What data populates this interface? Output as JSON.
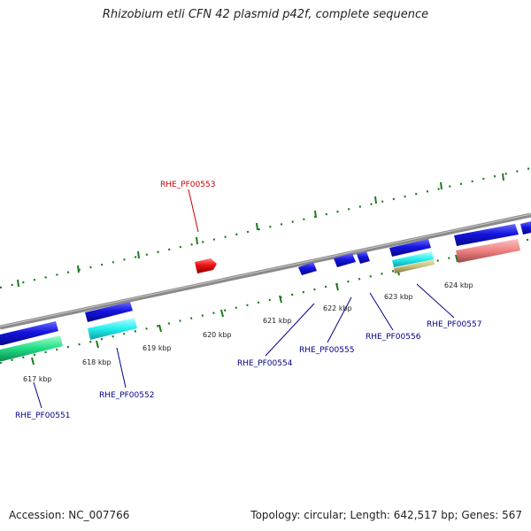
{
  "title": "Rhizobium etli CFN 42 plasmid p42f, complete sequence",
  "footer": {
    "accession": "Accession: NC_007766",
    "summary": "Topology: circular; Length: 642,517 bp; Genes: 567"
  },
  "colors": {
    "backbone": "#8a8a8a",
    "tick": "#1a7a1a",
    "label_blue": "#00008b",
    "label_red": "#cc0000",
    "gene_blue": "#1515e0",
    "gene_red": "#ee1111",
    "gene_cyan": "#22eeee",
    "gene_green": "#22dd88",
    "gene_salmon": "#ee8080",
    "gene_khaki": "#c8c080"
  },
  "ticks": [
    {
      "label": "617 kbp"
    },
    {
      "label": "618 kbp"
    },
    {
      "label": "619 kbp"
    },
    {
      "label": "620 kbp"
    },
    {
      "label": "621 kbp"
    },
    {
      "label": "622 kbp"
    },
    {
      "label": "623 kbp"
    },
    {
      "label": "624 kbp"
    }
  ],
  "gene_labels": [
    {
      "name": "RHE_PF00551",
      "color": "blue"
    },
    {
      "name": "RHE_PF00552",
      "color": "blue"
    },
    {
      "name": "RHE_PF00553",
      "color": "red"
    },
    {
      "name": "RHE_PF00554",
      "color": "blue"
    },
    {
      "name": "RHE_PF00555",
      "color": "blue"
    },
    {
      "name": "RHE_PF00556",
      "color": "blue"
    },
    {
      "name": "RHE_PF00557",
      "color": "blue"
    }
  ]
}
